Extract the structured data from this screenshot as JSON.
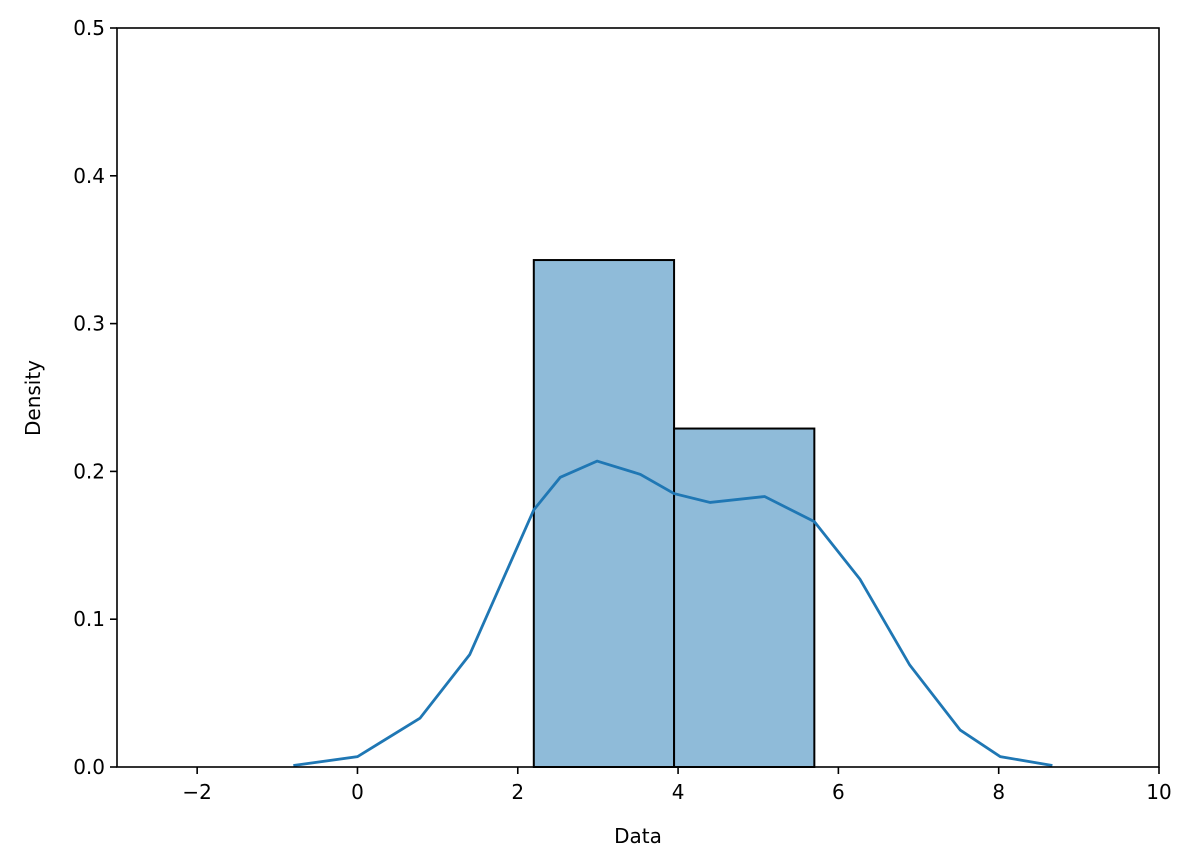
{
  "chart_data": {
    "type": "histogram",
    "xlabel": "Data",
    "ylabel": "Density",
    "bins": [
      2.2,
      3.95,
      5.7
    ],
    "values": [
      0.343,
      0.229
    ],
    "color": "#8fbbd9",
    "edgecolor": "#000000",
    "kde": {
      "color": "#1f77b4",
      "x": [
        -0.8,
        0,
        0.78,
        1.4,
        2.2,
        2.53,
        2.99,
        3.53,
        3.95,
        4.4,
        5.08,
        5.7,
        6.27,
        6.89,
        7.52,
        8.02,
        8.67
      ],
      "values": [
        0.001,
        0.007,
        0.033,
        0.076,
        0.174,
        0.196,
        0.207,
        0.198,
        0.185,
        0.179,
        0.183,
        0.166,
        0.127,
        0.069,
        0.025,
        0.007,
        0.001
      ]
    },
    "xlim": [
      -3,
      10
    ],
    "ylim": [
      0,
      0.5
    ],
    "xticks": [
      {
        "value": -2,
        "label": "−2"
      },
      0,
      2,
      4,
      6,
      8,
      10
    ],
    "yticks": [
      {
        "value": 0,
        "label": "0.0"
      },
      0.1,
      0.2,
      0.3,
      0.4,
      0.5
    ]
  }
}
